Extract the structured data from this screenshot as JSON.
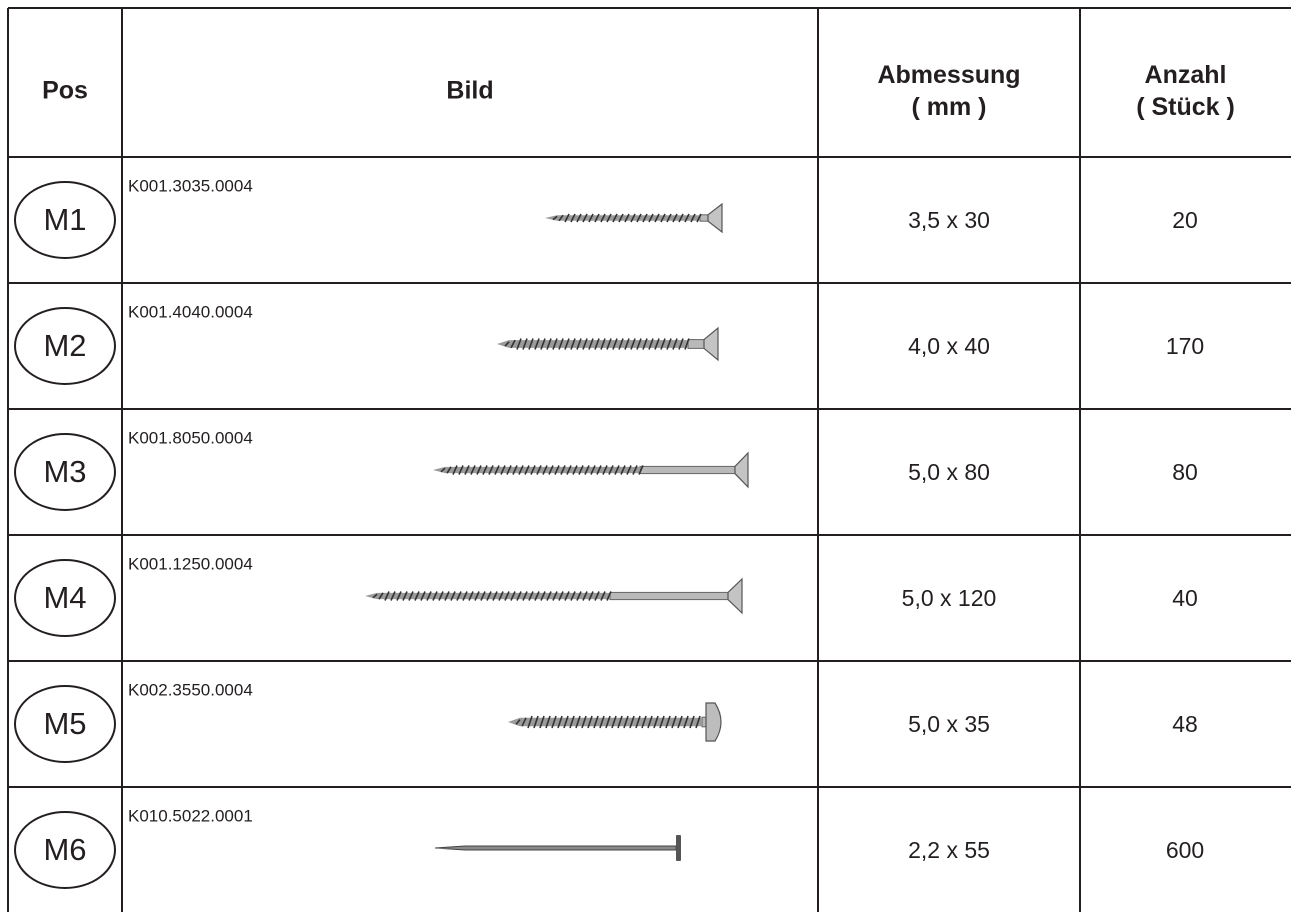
{
  "table": {
    "header": [
      "Pos",
      "Bild",
      "Abmessung\n( mm )",
      "Anzahl\n( Stück )"
    ],
    "rows": [
      [
        "M1",
        "K001.3035.0004",
        "3,5 x 30",
        "20"
      ],
      [
        "M2",
        "K001.4040.0004",
        "4,0 x 40",
        "170"
      ],
      [
        "M3",
        "K001.8050.0004",
        "5,0 x 80",
        "80"
      ],
      [
        "M4",
        "K001.1250.0004",
        "5,0 x 120",
        "40"
      ],
      [
        "M5",
        "K002.3550.0004",
        "5,0 x 35",
        "48"
      ],
      [
        "M6",
        "K010.5022.0001",
        "2,2 x 55",
        "600"
      ]
    ]
  }
}
